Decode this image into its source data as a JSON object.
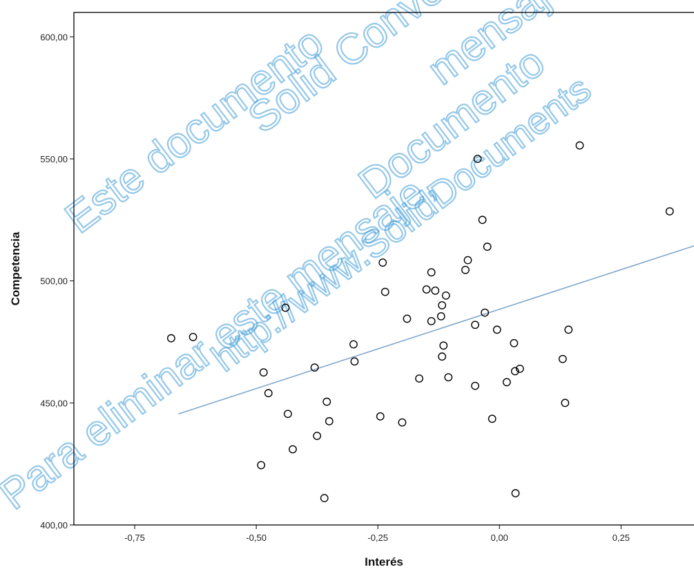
{
  "colors": {
    "background": "#ffffff",
    "axis": "#000000",
    "point_stroke": "#000000",
    "fit_line": "#7ea6cc",
    "watermark": "#3d9bd6"
  },
  "watermark": {
    "lines": [
      "Este documento",
      "Solid Converter",
      "mensaje, puede",
      "Documento",
      "Para eliminar este mensaje,",
      "http://www.SolidDocuments"
    ]
  },
  "chart_data": {
    "type": "scatter",
    "title": "",
    "xlabel": "Interés",
    "ylabel": "Competencia",
    "xlim": [
      -0.875,
      0.4
    ],
    "ylim": [
      400,
      610
    ],
    "x_ticks": [
      -0.75,
      -0.5,
      -0.25,
      0.0,
      0.25
    ],
    "x_tick_labels": [
      "-0,75",
      "-0,50",
      "-0,25",
      "0,00",
      "0,25"
    ],
    "y_ticks": [
      400,
      450,
      500,
      550,
      600
    ],
    "y_tick_labels": [
      "400,00",
      "450,00",
      "500,00",
      "550,00",
      "600,00"
    ],
    "grid": false,
    "legend": "none",
    "fit_line": {
      "x": [
        -0.66,
        0.41
      ],
      "y": [
        445.5,
        515
      ]
    },
    "points": [
      {
        "x": -0.675,
        "y": 476.5
      },
      {
        "x": -0.63,
        "y": 477
      },
      {
        "x": -0.49,
        "y": 424.5
      },
      {
        "x": -0.485,
        "y": 462.5
      },
      {
        "x": -0.475,
        "y": 454
      },
      {
        "x": -0.44,
        "y": 489
      },
      {
        "x": -0.435,
        "y": 445.5
      },
      {
        "x": -0.425,
        "y": 431
      },
      {
        "x": -0.38,
        "y": 464.5
      },
      {
        "x": -0.375,
        "y": 436.5
      },
      {
        "x": -0.36,
        "y": 411
      },
      {
        "x": -0.355,
        "y": 450.5
      },
      {
        "x": -0.35,
        "y": 442.5
      },
      {
        "x": -0.3,
        "y": 474
      },
      {
        "x": -0.298,
        "y": 467
      },
      {
        "x": -0.245,
        "y": 444.5
      },
      {
        "x": -0.24,
        "y": 507.5
      },
      {
        "x": -0.235,
        "y": 495.5
      },
      {
        "x": -0.2,
        "y": 442
      },
      {
        "x": -0.19,
        "y": 484.5
      },
      {
        "x": -0.165,
        "y": 460
      },
      {
        "x": -0.15,
        "y": 496.5
      },
      {
        "x": -0.14,
        "y": 503.5
      },
      {
        "x": -0.14,
        "y": 483.5
      },
      {
        "x": -0.132,
        "y": 496
      },
      {
        "x": -0.12,
        "y": 485.5
      },
      {
        "x": -0.118,
        "y": 490
      },
      {
        "x": -0.118,
        "y": 469
      },
      {
        "x": -0.115,
        "y": 473.5
      },
      {
        "x": -0.11,
        "y": 494
      },
      {
        "x": -0.105,
        "y": 460.5
      },
      {
        "x": -0.07,
        "y": 504.5
      },
      {
        "x": -0.065,
        "y": 508.5
      },
      {
        "x": -0.05,
        "y": 457
      },
      {
        "x": -0.05,
        "y": 482
      },
      {
        "x": -0.045,
        "y": 550
      },
      {
        "x": -0.035,
        "y": 525
      },
      {
        "x": -0.03,
        "y": 487
      },
      {
        "x": -0.025,
        "y": 514
      },
      {
        "x": -0.015,
        "y": 443.5
      },
      {
        "x": -0.005,
        "y": 480
      },
      {
        "x": 0.015,
        "y": 458.5
      },
      {
        "x": 0.03,
        "y": 474.5
      },
      {
        "x": 0.032,
        "y": 463
      },
      {
        "x": 0.033,
        "y": 413
      },
      {
        "x": 0.042,
        "y": 464
      },
      {
        "x": 0.13,
        "y": 468
      },
      {
        "x": 0.135,
        "y": 450
      },
      {
        "x": 0.142,
        "y": 480
      },
      {
        "x": 0.165,
        "y": 555.5
      },
      {
        "x": 0.35,
        "y": 528.5
      }
    ]
  }
}
